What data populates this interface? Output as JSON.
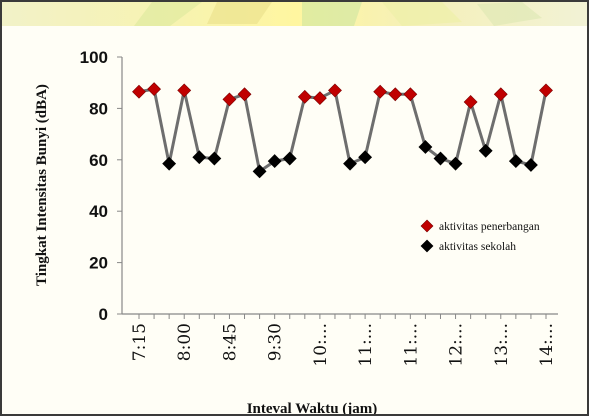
{
  "chart_data": {
    "type": "line",
    "ylabel": "Tingkat Intensitas Bunyi (dBA)",
    "xlabel": "Inteval Waktu (jam)",
    "ylim": [
      0,
      100
    ],
    "yticks": [
      "0",
      "20",
      "40",
      "60",
      "80",
      "100"
    ],
    "xtick_labels": [
      "7:15",
      "8:00",
      "8:45",
      "9:30",
      "10:...",
      "11:...",
      "11:...",
      "12:...",
      "13:...",
      "14:..."
    ],
    "x": [
      "7:15",
      "7:30",
      "7:45",
      "8:00",
      "8:15",
      "8:30",
      "8:45",
      "9:00",
      "9:15",
      "9:30",
      "9:45",
      "10:00",
      "10:15",
      "10:30",
      "10:45",
      "11:00",
      "11:15",
      "11:30",
      "11:45",
      "12:00",
      "12:15",
      "12:30",
      "12:45",
      "13:00",
      "13:15",
      "13:30",
      "13:45",
      "14:00"
    ],
    "values": [
      86.5,
      87.5,
      58.5,
      87,
      61,
      60.5,
      83.5,
      85.5,
      55.5,
      59.5,
      60.5,
      84.5,
      84,
      87,
      58.5,
      61,
      86.5,
      85.5,
      85.5,
      65,
      60.5,
      58.5,
      82.5,
      63.5,
      85.5,
      59.5,
      58,
      87
    ],
    "activity": [
      "penerbangan",
      "penerbangan",
      "sekolah",
      "penerbangan",
      "sekolah",
      "sekolah",
      "penerbangan",
      "penerbangan",
      "sekolah",
      "sekolah",
      "sekolah",
      "penerbangan",
      "penerbangan",
      "penerbangan",
      "sekolah",
      "sekolah",
      "penerbangan",
      "penerbangan",
      "penerbangan",
      "sekolah",
      "sekolah",
      "sekolah",
      "penerbangan",
      "sekolah",
      "penerbangan",
      "sekolah",
      "sekolah",
      "penerbangan"
    ],
    "legend": [
      {
        "key": "penerbangan",
        "label": "aktivitas penerbangan",
        "color": "#c00000"
      },
      {
        "key": "sekolah",
        "label": "aktivitas sekolah",
        "color": "#000000"
      }
    ],
    "legend_position": "right",
    "line_color": "#6e6e6e",
    "grid": false
  }
}
